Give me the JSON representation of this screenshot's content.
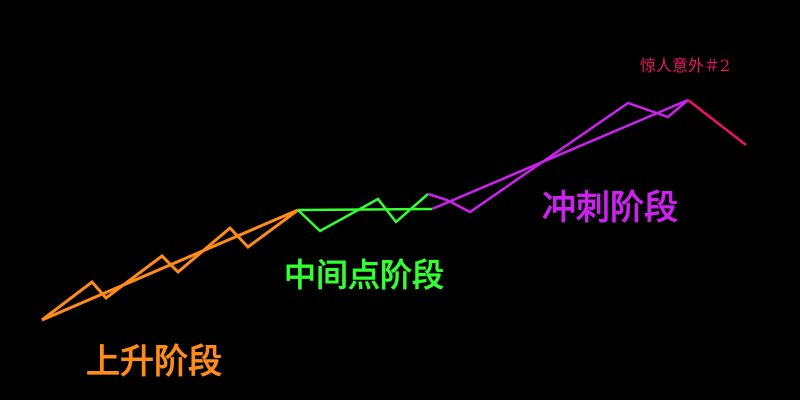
{
  "colors": {
    "background": "#000000",
    "rise": "#ff8c1a",
    "mid": "#33ff33",
    "sprint": "#cc22ee",
    "surprise": "#ee1166"
  },
  "labels": {
    "rise": "上升阶段",
    "mid": "中间点阶段",
    "sprint": "冲刺阶段",
    "surprise": "惊人意外＃2"
  }
}
